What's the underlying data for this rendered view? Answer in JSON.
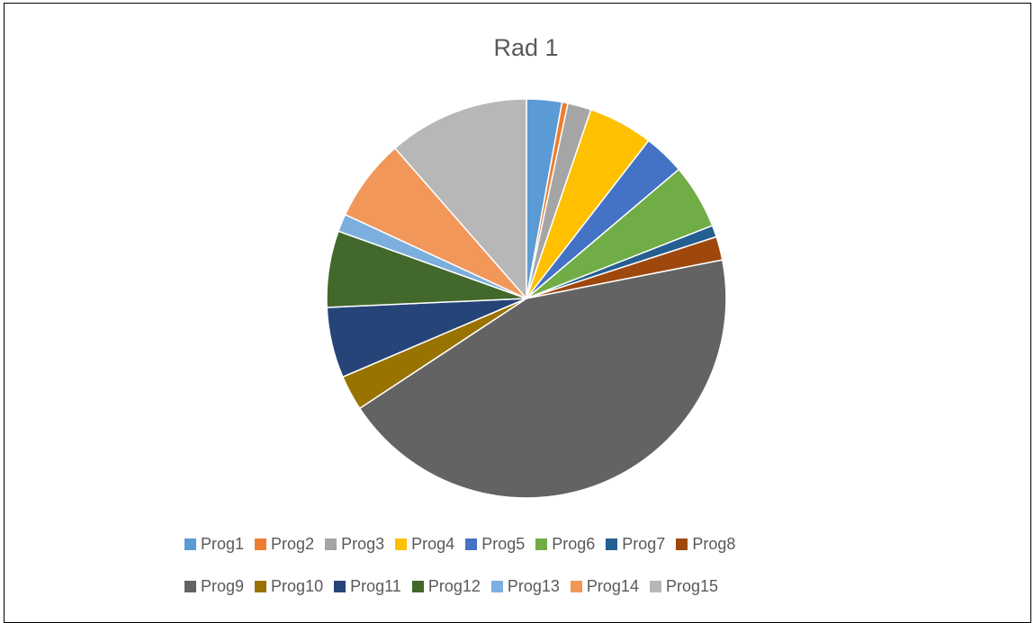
{
  "chart_data": {
    "type": "pie",
    "title": "Rad 1",
    "categories": [
      "Prog1",
      "Prog2",
      "Prog3",
      "Prog4",
      "Prog5",
      "Prog6",
      "Prog7",
      "Prog8",
      "Prog9",
      "Prog10",
      "Prog11",
      "Prog12",
      "Prog13",
      "Prog14",
      "Prog15"
    ],
    "values": [
      3,
      0.5,
      2,
      5.5,
      3.5,
      5.5,
      1,
      2,
      46,
      3,
      6,
      6.5,
      1.5,
      7,
      12
    ],
    "colors": [
      "#5B9BD5",
      "#ED7D31",
      "#A5A5A5",
      "#FFC000",
      "#4472C4",
      "#70AD47",
      "#255E91",
      "#9E480E",
      "#636363",
      "#997300",
      "#264478",
      "#43682B",
      "#7CAFDD",
      "#F1975A",
      "#B7B7B7"
    ],
    "legend_position": "bottom",
    "legend_rows": [
      [
        0,
        1,
        2,
        3,
        4,
        5,
        6,
        7
      ],
      [
        8,
        9,
        10,
        11,
        12,
        13,
        14
      ]
    ]
  }
}
